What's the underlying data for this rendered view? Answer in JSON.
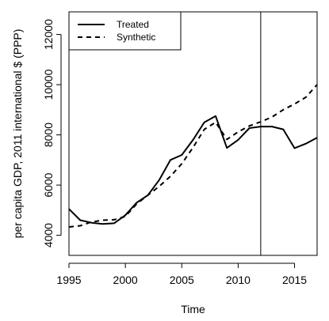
{
  "chart_data": {
    "type": "line",
    "xlabel": "Time",
    "ylabel": "per capita GDP, 2011 international $ (PPP)",
    "xlim": [
      1995,
      2017
    ],
    "ylim": [
      3200,
      12900
    ],
    "x_ticks": [
      1995,
      2000,
      2005,
      2010,
      2015
    ],
    "y_ticks": [
      4000,
      6000,
      8000,
      10000,
      12000
    ],
    "intervention_x": 2012,
    "legend_position": "top-left",
    "grid": false,
    "series": [
      {
        "name": "Treated",
        "style": "solid",
        "color": "#000000",
        "x": [
          1995,
          1996,
          1997,
          1998,
          1999,
          2000,
          2001,
          2002,
          2003,
          2004,
          2005,
          2006,
          2007,
          2008,
          2009,
          2010,
          2011,
          2012,
          2013,
          2014,
          2015,
          2016,
          2017
        ],
        "y": [
          5050,
          4600,
          4500,
          4450,
          4480,
          4800,
          5300,
          5600,
          6200,
          7000,
          7200,
          7800,
          8500,
          8750,
          7480,
          7800,
          8270,
          8330,
          8330,
          8220,
          7470,
          7650,
          7890
        ]
      },
      {
        "name": "Synthetic",
        "style": "dashed",
        "color": "#000000",
        "x": [
          1995,
          1996,
          1997,
          1998,
          1999,
          2000,
          2001,
          2002,
          2003,
          2004,
          2005,
          2006,
          2007,
          2008,
          2009,
          2010,
          2011,
          2012,
          2013,
          2014,
          2015,
          2016,
          2017
        ],
        "y": [
          4330,
          4380,
          4530,
          4600,
          4620,
          4750,
          5250,
          5600,
          5950,
          6350,
          6850,
          7500,
          8220,
          8500,
          7820,
          8120,
          8360,
          8520,
          8710,
          9000,
          9230,
          9500,
          10000
        ]
      }
    ]
  }
}
